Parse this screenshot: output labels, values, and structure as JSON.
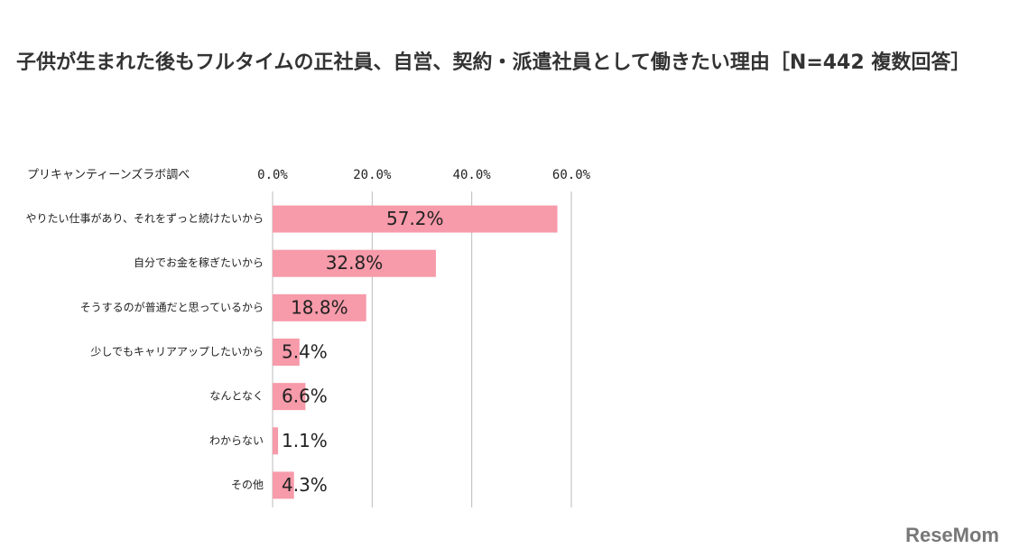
{
  "chart_data": {
    "type": "hbar",
    "title": "子供が生まれた後もフルタイムの正社員、自営、契約・派遣社員として働きたい理由［N=442 複数回答］",
    "source": "プリキャンティーンズラボ調べ",
    "categories": [
      "やりたい仕事があり、それをずっと続けたいから",
      "自分でお金を稼ぎたいから",
      "そうするのが普通だと思っているから",
      "少しでもキャリアアップしたいから",
      "なんとなく",
      "わからない",
      "その他"
    ],
    "values": [
      57.2,
      32.8,
      18.8,
      5.4,
      6.6,
      1.1,
      4.3
    ],
    "value_labels": [
      "57.2%",
      "32.8%",
      "18.8%",
      "5.4%",
      "6.6%",
      "1.1%",
      "4.3%"
    ],
    "color": "#f79aa9",
    "xlim": [
      0,
      60
    ],
    "xticks": [
      {
        "value": 0,
        "label": "0.0%"
      },
      {
        "value": 20,
        "label": "20.0%"
      },
      {
        "value": 40,
        "label": "40.0%"
      },
      {
        "value": 60,
        "label": "60.0%"
      }
    ],
    "grid": true
  },
  "watermark": "ReseMom"
}
